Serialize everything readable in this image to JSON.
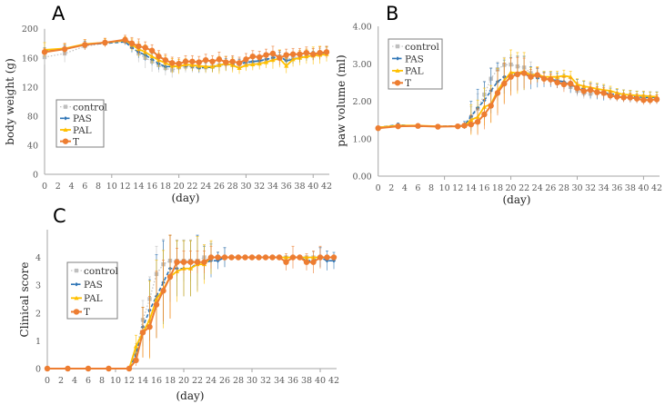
{
  "colors": {
    "control": "#bfbfbf",
    "PAS": "#2e75b6",
    "PAL": "#ffc000",
    "T": "#ed7d31",
    "axis": "#a6a6a6"
  },
  "chart_data": [
    {
      "type": "line",
      "panel": "A",
      "title": "A",
      "xlabel": "(day)",
      "ylabel": "body weight (g)",
      "xlim": [
        0,
        42
      ],
      "ylim": [
        0,
        200
      ],
      "xticks": [
        0,
        2,
        4,
        6,
        8,
        10,
        12,
        14,
        16,
        18,
        20,
        22,
        24,
        26,
        28,
        30,
        32,
        34,
        36,
        38,
        40,
        42
      ],
      "yticks": [
        0,
        40,
        80,
        120,
        160,
        200
      ],
      "ytick_labels": [
        "0",
        "40",
        "80",
        "120",
        "160",
        "200"
      ],
      "legend": "left-middle",
      "x": [
        0,
        3,
        6,
        9,
        12,
        13,
        14,
        15,
        16,
        17,
        18,
        19,
        20,
        21,
        22,
        23,
        24,
        25,
        26,
        27,
        28,
        29,
        30,
        31,
        32,
        33,
        34,
        35,
        36,
        37,
        38,
        39,
        40,
        41,
        42
      ],
      "series": [
        {
          "name": "control",
          "values": [
            161,
            166,
            176,
            180,
            183,
            175,
            166,
            160,
            155,
            150,
            146,
            143,
            147,
            148,
            148,
            147,
            147,
            148,
            150,
            152,
            152,
            151,
            152,
            154,
            155,
            157,
            160,
            162,
            158,
            160,
            162,
            164,
            165,
            165,
            168
          ],
          "sd": [
            10,
            12,
            5,
            4,
            4,
            8,
            12,
            14,
            14,
            10,
            10,
            10,
            8,
            8,
            8,
            8,
            8,
            8,
            10,
            10,
            10,
            8,
            8,
            8,
            8,
            8,
            8,
            8,
            8,
            8,
            8,
            8,
            8,
            8,
            8
          ]
        },
        {
          "name": "PAS",
          "values": [
            169,
            172,
            178,
            180,
            182,
            174,
            168,
            164,
            158,
            152,
            148,
            148,
            149,
            149,
            148,
            146,
            147,
            147,
            150,
            151,
            150,
            152,
            154,
            155,
            156,
            158,
            160,
            162,
            156,
            158,
            160,
            162,
            163,
            164,
            169
          ],
          "sd": [
            5,
            5,
            5,
            4,
            4,
            6,
            8,
            8,
            8,
            8,
            6,
            6,
            6,
            6,
            6,
            6,
            6,
            6,
            8,
            8,
            6,
            6,
            6,
            6,
            6,
            6,
            6,
            6,
            6,
            6,
            6,
            6,
            6,
            6,
            6
          ]
        },
        {
          "name": "PAL",
          "values": [
            171,
            173,
            179,
            181,
            184,
            178,
            172,
            168,
            162,
            157,
            153,
            149,
            148,
            151,
            150,
            149,
            148,
            148,
            150,
            152,
            150,
            146,
            150,
            151,
            152,
            154,
            157,
            159,
            149,
            158,
            160,
            162,
            163,
            164,
            165
          ],
          "sd": [
            10,
            6,
            6,
            5,
            5,
            8,
            10,
            10,
            10,
            10,
            10,
            10,
            10,
            8,
            8,
            8,
            8,
            8,
            12,
            10,
            10,
            8,
            8,
            8,
            8,
            8,
            12,
            12,
            10,
            10,
            10,
            10,
            12,
            12,
            10
          ]
        },
        {
          "name": "T",
          "values": [
            168,
            172,
            178,
            181,
            185,
            180,
            176,
            174,
            170,
            162,
            157,
            153,
            152,
            155,
            155,
            154,
            157,
            155,
            158,
            154,
            155,
            153,
            158,
            162,
            161,
            164,
            166,
            160,
            164,
            165,
            165,
            167,
            165,
            167,
            168
          ],
          "sd": [
            5,
            8,
            7,
            6,
            6,
            8,
            10,
            8,
            8,
            8,
            8,
            8,
            8,
            8,
            8,
            8,
            8,
            8,
            10,
            8,
            8,
            8,
            8,
            8,
            8,
            8,
            10,
            10,
            8,
            8,
            8,
            8,
            8,
            8,
            8
          ]
        }
      ]
    },
    {
      "type": "line",
      "panel": "B",
      "title": "B",
      "xlabel": "(day)",
      "ylabel": "paw volume (ml)",
      "xlim": [
        0,
        42
      ],
      "ylim": [
        0,
        4
      ],
      "xticks": [
        0,
        2,
        4,
        6,
        8,
        10,
        12,
        14,
        16,
        18,
        20,
        22,
        24,
        26,
        28,
        30,
        32,
        34,
        36,
        38,
        40,
        42
      ],
      "yticks": [
        0,
        1,
        2,
        3,
        4
      ],
      "ytick_labels": [
        "0.00",
        "1.00",
        "2.00",
        "3.00",
        "4.00"
      ],
      "legend": "top-left",
      "x": [
        0,
        3,
        6,
        9,
        12,
        13,
        14,
        15,
        16,
        17,
        18,
        19,
        20,
        21,
        22,
        23,
        24,
        25,
        26,
        27,
        28,
        29,
        30,
        31,
        32,
        33,
        34,
        35,
        36,
        37,
        38,
        39,
        40,
        41,
        42
      ],
      "series": [
        {
          "name": "control",
          "values": [
            1.28,
            1.35,
            1.33,
            1.32,
            1.33,
            1.35,
            1.55,
            1.8,
            2.18,
            2.6,
            2.85,
            2.97,
            2.98,
            2.93,
            2.9,
            2.75,
            2.7,
            2.62,
            2.58,
            2.55,
            2.48,
            2.38,
            2.28,
            2.22,
            2.2,
            2.22,
            2.2,
            2.15,
            2.12,
            2.1,
            2.08,
            2.07,
            2.07,
            2.05,
            2.05
          ],
          "sd": [
            0.03,
            0.05,
            0.03,
            0.03,
            0.03,
            0.05,
            0.3,
            0.4,
            0.35,
            0.3,
            0.2,
            0.2,
            0.25,
            0.28,
            0.3,
            0.3,
            0.2,
            0.15,
            0.15,
            0.15,
            0.15,
            0.15,
            0.15,
            0.15,
            0.15,
            0.15,
            0.15,
            0.12,
            0.12,
            0.12,
            0.12,
            0.12,
            0.12,
            0.12,
            0.12
          ]
        },
        {
          "name": "PAS",
          "values": [
            1.3,
            1.37,
            1.33,
            1.33,
            1.34,
            1.36,
            1.6,
            1.82,
            2.02,
            2.28,
            2.52,
            2.65,
            2.72,
            2.75,
            2.75,
            2.62,
            2.62,
            2.58,
            2.58,
            2.55,
            2.52,
            2.42,
            2.38,
            2.33,
            2.28,
            2.25,
            2.22,
            2.2,
            2.17,
            2.15,
            2.13,
            2.12,
            2.1,
            2.1,
            2.1
          ],
          "sd": [
            0.03,
            0.05,
            0.03,
            0.03,
            0.03,
            0.1,
            0.4,
            0.5,
            0.5,
            0.6,
            0.5,
            0.45,
            0.45,
            0.45,
            0.45,
            0.3,
            0.25,
            0.2,
            0.2,
            0.2,
            0.2,
            0.2,
            0.2,
            0.2,
            0.2,
            0.2,
            0.2,
            0.15,
            0.15,
            0.15,
            0.15,
            0.15,
            0.15,
            0.15,
            0.15
          ]
        },
        {
          "name": "PAL",
          "values": [
            1.3,
            1.35,
            1.35,
            1.33,
            1.33,
            1.34,
            1.5,
            1.58,
            1.85,
            1.92,
            2.28,
            2.55,
            2.77,
            2.75,
            2.8,
            2.7,
            2.72,
            2.65,
            2.65,
            2.65,
            2.68,
            2.65,
            2.45,
            2.4,
            2.37,
            2.33,
            2.3,
            2.28,
            2.22,
            2.18,
            2.17,
            2.15,
            2.15,
            2.13,
            2.12
          ],
          "sd": [
            0.03,
            0.03,
            0.03,
            0.03,
            0.03,
            0.05,
            0.4,
            0.45,
            0.5,
            0.5,
            0.6,
            0.6,
            0.6,
            0.55,
            0.5,
            0.2,
            0.2,
            0.15,
            0.15,
            0.15,
            0.15,
            0.15,
            0.15,
            0.15,
            0.15,
            0.15,
            0.15,
            0.12,
            0.12,
            0.12,
            0.12,
            0.12,
            0.12,
            0.12,
            0.12
          ]
        },
        {
          "name": "T",
          "values": [
            1.28,
            1.33,
            1.34,
            1.32,
            1.33,
            1.35,
            1.38,
            1.45,
            1.65,
            1.88,
            2.22,
            2.47,
            2.65,
            2.72,
            2.75,
            2.65,
            2.7,
            2.6,
            2.58,
            2.5,
            2.45,
            2.47,
            2.35,
            2.27,
            2.3,
            2.24,
            2.22,
            2.15,
            2.12,
            2.1,
            2.1,
            2.07,
            2.03,
            2.03,
            2.05
          ],
          "sd": [
            0.03,
            0.03,
            0.03,
            0.03,
            0.03,
            0.05,
            0.25,
            0.35,
            0.4,
            0.45,
            0.6,
            0.55,
            0.5,
            0.45,
            0.4,
            0.2,
            0.2,
            0.15,
            0.15,
            0.15,
            0.2,
            0.15,
            0.15,
            0.15,
            0.15,
            0.15,
            0.15,
            0.12,
            0.12,
            0.12,
            0.12,
            0.12,
            0.12,
            0.12,
            0.12
          ]
        }
      ]
    },
    {
      "type": "line",
      "panel": "C",
      "title": "C",
      "xlabel": "(day)",
      "ylabel": "Clinical score",
      "xlim": [
        0,
        42
      ],
      "ylim": [
        0,
        5
      ],
      "xticks": [
        0,
        2,
        4,
        6,
        8,
        10,
        12,
        14,
        16,
        18,
        20,
        22,
        24,
        26,
        28,
        30,
        32,
        34,
        36,
        38,
        40,
        42
      ],
      "yticks": [
        0,
        1,
        2,
        3,
        4
      ],
      "ytick_labels": [
        "0",
        "1",
        "2",
        "3",
        "4"
      ],
      "legend": "left-middle",
      "x": [
        0,
        3,
        6,
        9,
        12,
        13,
        14,
        15,
        16,
        17,
        18,
        19,
        20,
        21,
        22,
        23,
        24,
        25,
        26,
        27,
        28,
        29,
        30,
        31,
        32,
        33,
        34,
        35,
        36,
        37,
        38,
        39,
        40,
        41,
        42
      ],
      "series": [
        {
          "name": "control",
          "values": [
            0,
            0,
            0,
            0,
            0,
            0.6,
            1.75,
            2.5,
            3.4,
            3.75,
            3.88,
            3.88,
            3.88,
            3.88,
            3.88,
            4,
            4,
            4,
            4,
            4,
            4,
            4,
            4,
            4,
            4,
            4,
            4,
            4,
            4,
            4,
            4,
            4,
            4,
            4,
            4
          ],
          "sd": [
            0,
            0,
            0,
            0,
            0,
            0.3,
            0.7,
            0.8,
            1.0,
            0.9,
            0.9,
            0.75,
            0.75,
            0.75,
            0.9,
            0.45,
            0.55,
            0.2,
            0.35,
            0,
            0,
            0,
            0,
            0,
            0,
            0,
            0,
            0,
            0,
            0,
            0,
            0.2,
            0.35,
            0,
            0
          ]
        },
        {
          "name": "PAS",
          "values": [
            0,
            0,
            0,
            0,
            0,
            0.5,
            1.5,
            2.1,
            2.6,
            3.1,
            3.6,
            3.6,
            3.6,
            3.6,
            3.8,
            3.8,
            3.88,
            3.88,
            4,
            4,
            4,
            4,
            4,
            4,
            4,
            4,
            4,
            4,
            4,
            4,
            3.88,
            3.88,
            4,
            3.88,
            3.88
          ],
          "sd": [
            0,
            0,
            0,
            0,
            0,
            0.3,
            0.7,
            1.1,
            1.5,
            1.5,
            1.2,
            1.0,
            1.0,
            1.0,
            1.0,
            0.6,
            0.6,
            0.3,
            0.35,
            0,
            0,
            0,
            0,
            0,
            0,
            0,
            0,
            0,
            0,
            0,
            0,
            0,
            0.35,
            0.35,
            0.3
          ]
        },
        {
          "name": "PAL",
          "values": [
            0,
            0,
            0,
            0,
            0,
            0.8,
            1.3,
            1.75,
            2.5,
            2.85,
            3.3,
            3.5,
            3.6,
            3.6,
            3.75,
            3.75,
            4,
            4,
            4,
            4,
            4,
            4,
            4,
            4,
            4,
            4,
            4,
            4,
            4,
            4,
            4,
            4,
            4,
            4,
            4
          ],
          "sd": [
            0,
            0,
            0,
            0,
            0,
            0.4,
            0.9,
            1.4,
            1.4,
            1.4,
            1.5,
            1.1,
            1.0,
            1.0,
            1.0,
            0.7,
            0.6,
            0,
            0,
            0,
            0,
            0,
            0,
            0,
            0,
            0,
            0,
            0,
            0,
            0,
            0,
            0,
            0,
            0,
            0
          ]
        },
        {
          "name": "T",
          "values": [
            0,
            0,
            0,
            0,
            0,
            0.3,
            1.3,
            1.5,
            2.3,
            2.8,
            3.3,
            3.83,
            3.83,
            3.83,
            3.83,
            3.83,
            4,
            4,
            4,
            4,
            4,
            4,
            4,
            4,
            4,
            4,
            4,
            3.83,
            4,
            4,
            3.83,
            3.83,
            4,
            4,
            4
          ],
          "sd": [
            0,
            0,
            0,
            0,
            0,
            0.2,
            0.9,
            1.1,
            1.2,
            1.1,
            1.5,
            0.5,
            0.4,
            0.4,
            0.4,
            0.4,
            0.4,
            0,
            0,
            0,
            0,
            0,
            0,
            0,
            0,
            0,
            0,
            0.3,
            0.4,
            0,
            0.3,
            0.4,
            0.4,
            0,
            0
          ]
        }
      ]
    }
  ]
}
